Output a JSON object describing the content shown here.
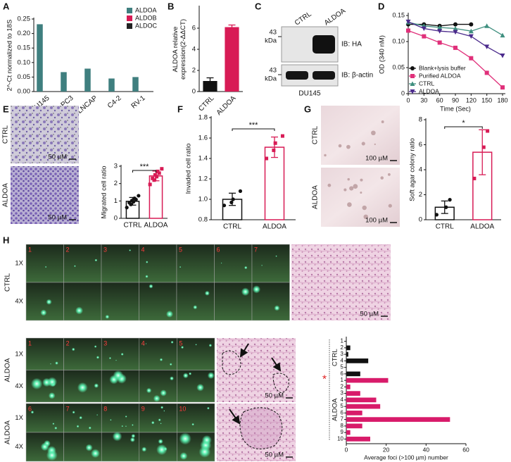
{
  "panel_letters": [
    "A",
    "B",
    "C",
    "D",
    "E",
    "F",
    "G",
    "H"
  ],
  "chart_data": [
    {
      "type": "bar",
      "y_label": "2^-Ct normalized to 18S",
      "categories": [
        "DU145",
        "PC3",
        "LNCAP",
        "C4-2",
        "RV-1"
      ],
      "series": [
        {
          "name": "ALDOA",
          "color": "#3f7f7f",
          "values": [
            0.232,
            0.067,
            0.079,
            0.045,
            0.05
          ]
        },
        {
          "name": "ALDOB",
          "color": "#d81b55",
          "values": [
            0,
            0,
            0,
            0,
            0
          ]
        },
        {
          "name": "ALDOC",
          "color": "#222222",
          "values": [
            0,
            0,
            0,
            0,
            0
          ]
        }
      ],
      "ylim": [
        0,
        0.25
      ],
      "yticks": [
        {
          "value": 0,
          "label": "0.00"
        },
        0.05,
        {
          "value": 0.1,
          "label": "0.10"
        },
        0.15,
        {
          "value": 0.2,
          "label": "0.20"
        },
        0.25
      ],
      "legend": "top-right"
    },
    {
      "type": "bar",
      "y_label": [
        "ALDOA relative",
        "expression(2-ΔΔCT)"
      ],
      "categories": [
        "CTRL",
        "ALDOA"
      ],
      "values": [
        1.0,
        6.1
      ],
      "errors": [
        0.3,
        0.2
      ],
      "colors": [
        "#111111",
        "#d81b55"
      ],
      "ylim": [
        0,
        8
      ],
      "yticks": [
        0,
        2,
        4,
        6
      ]
    },
    {
      "type": "line",
      "x_label": "Time (Sec)",
      "y_label": "OD (340 nM)",
      "x": [
        0,
        30,
        60,
        90,
        120,
        150,
        180
      ],
      "series": [
        {
          "name": "Blank+lysis buffer",
          "color": "#111111",
          "marker": "circle",
          "values": [
            0.133,
            0.133,
            0.13,
            0.133,
            0.133,
            null,
            null
          ]
        },
        {
          "name": "Purified ALDOA",
          "color": "#e0307a",
          "marker": "square",
          "values": [
            0.121,
            0.11,
            0.098,
            0.088,
            0.068,
            0.04,
            0.012
          ]
        },
        {
          "name": "CTRL",
          "color": "#3f8f7f",
          "marker": "triangle",
          "values": [
            0.137,
            0.13,
            0.127,
            0.125,
            0.12,
            0.13,
            0.112
          ]
        },
        {
          "name": "ALDOA",
          "color": "#4b2a8c",
          "marker": "triangle-down",
          "values": [
            0.138,
            0.125,
            0.12,
            0.118,
            0.11,
            0.09,
            0.073
          ]
        }
      ],
      "xlim": [
        0,
        180
      ],
      "xticks": [
        0,
        30,
        60,
        90,
        120,
        150,
        180
      ],
      "ylim": [
        0,
        0.15
      ],
      "yticks": [
        0,
        0.05,
        {
          "value": 0.1,
          "label": "0.10"
        },
        0.15
      ],
      "legend": "bottom-left"
    },
    {
      "type": "bar",
      "y_label": "Migrated cell ratio",
      "categories": [
        "CTRL",
        "ALDOA"
      ],
      "values": [
        0.98,
        2.44
      ],
      "errors": [
        0.22,
        0.28
      ],
      "points": [
        [
          0.62,
          0.8,
          0.9,
          0.95,
          1.02,
          1.08,
          1.15,
          1.3
        ],
        [
          1.95,
          2.2,
          2.3,
          2.4,
          2.5,
          2.6,
          2.7,
          2.85
        ]
      ],
      "colors": [
        "#111111",
        "#d81b55"
      ],
      "hollow": true,
      "significance": "***",
      "ylim": [
        0,
        3
      ],
      "yticks": [
        0,
        1,
        2,
        3
      ]
    },
    {
      "type": "bar",
      "y_label": "Invaded cell ratio",
      "categories": [
        "CTRL",
        "ALDOA"
      ],
      "values": [
        1.0,
        1.51
      ],
      "errors": [
        0.06,
        0.1
      ],
      "points": [
        [
          0.94,
          0.97,
          1.0,
          1.08
        ],
        [
          1.4,
          1.48,
          1.55,
          1.62
        ]
      ],
      "colors": [
        "#111111",
        "#d81b55"
      ],
      "hollow": true,
      "significance": "***",
      "ylim": [
        0.8,
        1.8
      ],
      "yticks": [
        0.8,
        {
          "value": 1,
          "label": "1.0"
        },
        1.2,
        1.4,
        1.6,
        1.8
      ]
    },
    {
      "type": "bar",
      "y_label": "Soft agar colony ratio",
      "categories": [
        "CTRL",
        "ALDOA"
      ],
      "values": [
        1.0,
        5.4
      ],
      "errors": [
        0.5,
        1.8
      ],
      "points": [
        [
          0.4,
          1.0,
          1.6
        ],
        [
          3.3,
          5.8,
          7.1
        ]
      ],
      "colors": [
        "#111111",
        "#d81b55"
      ],
      "hollow": true,
      "significance": "*",
      "ylim": [
        0,
        8
      ],
      "yticks": [
        0,
        2,
        4,
        6,
        8
      ]
    },
    {
      "type": "barh",
      "x_label": "Average foci (>100 µm) number",
      "categories": [
        "1",
        "2",
        "3",
        "4",
        "5",
        "6",
        "1",
        "2",
        "3",
        "4",
        "5",
        "6",
        "7",
        "8",
        "9",
        "10"
      ],
      "series": [
        {
          "name": "CTRL",
          "color": "#111111",
          "values": [
            0,
            2,
            1,
            11,
            0,
            7,
            null,
            null,
            null,
            null,
            null,
            null,
            null,
            null,
            null,
            null
          ]
        },
        {
          "name": "ALDOA",
          "color": "#d81b6a",
          "values": [
            null,
            null,
            null,
            null,
            null,
            null,
            21,
            2,
            7,
            15,
            17,
            8,
            52,
            8,
            2,
            12
          ]
        }
      ],
      "annotation": {
        "text": "*",
        "color": "#e02020"
      },
      "xlim": [
        0,
        60
      ],
      "xticks": [
        0,
        20,
        40,
        60
      ]
    }
  ],
  "blot": {
    "lanes": [
      "CTRL",
      "ALDOA"
    ],
    "markers": [
      [
        "43",
        "kDa"
      ],
      [
        "43",
        "kDa"
      ]
    ],
    "probes": [
      "IB: HA",
      "IB: β-actin"
    ],
    "cell_line": "DU145"
  },
  "migration_images": {
    "rows": [
      "CTRL",
      "ALDOA"
    ],
    "scale": "50 µM"
  },
  "colony_images": {
    "rows": [
      "CTRL",
      "ALDOA"
    ],
    "scale": "100 µM"
  },
  "metastasis_images": {
    "groups": [
      {
        "name": "CTRL",
        "magnifications": [
          "1X",
          "4X"
        ],
        "fields": [
          "1",
          "2",
          "3",
          "4",
          "5",
          "6",
          "7"
        ]
      },
      {
        "name": "ALDOA",
        "magnifications": [
          "1X",
          "4X"
        ],
        "fields": [
          "1",
          "2",
          "3",
          "4",
          "5"
        ]
      },
      {
        "name": "ALDOA",
        "magnifications": [
          "1X",
          "4X"
        ],
        "fields": [
          "6",
          "7",
          "8",
          "9",
          "10"
        ]
      }
    ],
    "scale": "50 µM"
  }
}
